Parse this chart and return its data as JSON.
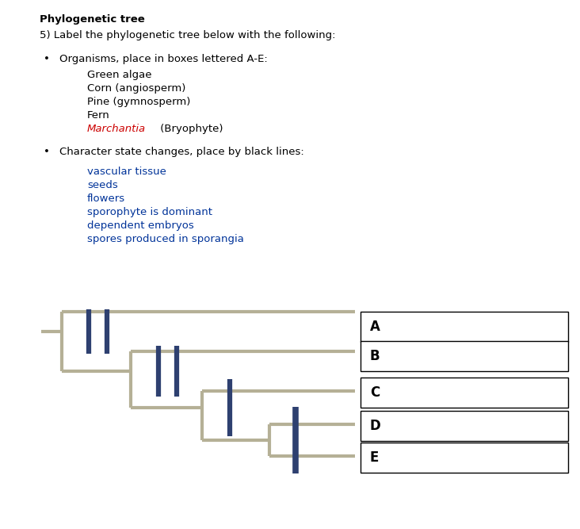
{
  "title": "Phylogenetic tree",
  "subtitle": "5) Label the phylogenetic tree below with the following:",
  "bullet1_header": "Organisms, place in boxes lettered A-E:",
  "organisms": [
    "Green algae",
    "Corn (angiosperm)",
    "Pine (gymnosperm)",
    "Fern",
    "Marchantia (Bryophyte)"
  ],
  "bullet2_header": "Character state changes, place by black lines:",
  "character_states": [
    "vascular tissue",
    "seeds",
    "flowers",
    "sporophyte is dominant",
    "dependent embryos",
    "spores produced in sporangia"
  ],
  "tree_color": "#b5b096",
  "bar_color": "#2e4070",
  "tree_lw": 3.0,
  "bar_lw": 4.5,
  "box_labels": [
    "A",
    "B",
    "C",
    "D",
    "E"
  ],
  "bg_color": "#ffffff",
  "text_color": "#000000",
  "blue_text_color": "#003399",
  "red_color": "#cc0000",
  "font_size": 9.5
}
